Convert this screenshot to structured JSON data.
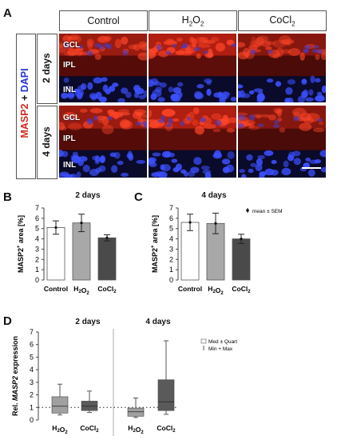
{
  "panelA": {
    "letter": "A",
    "columns": [
      "Control",
      "H2O2",
      "CoCl2"
    ],
    "stain_red": "MASP2",
    "stain_plus": " + ",
    "stain_blue": "DAPI",
    "rows": [
      "2 days",
      "4 days"
    ],
    "layers": [
      "GCL",
      "IPL",
      "INL"
    ]
  },
  "panelB": {
    "letter": "B",
    "title": "2 days"
  },
  "panelC": {
    "letter": "C",
    "title": "4 days",
    "legend": "mean ± SEM"
  },
  "panelD": {
    "letter": "D",
    "title_left": "2 days",
    "title_right": "4 days",
    "legend_box": "Med ± Quart",
    "legend_whisker": "Min + Max"
  },
  "colors": {
    "red": "#d42a1c",
    "blue": "#2535d8",
    "bar_control": "#ffffff",
    "bar_h2o2": "#a8a8a8",
    "bar_cocl2": "#4a4a4a",
    "box_light": "#a0a0a0",
    "box_dark": "#5a5a5a"
  },
  "chart_data": [
    {
      "type": "bar",
      "title": "2 days",
      "categories": [
        "Control",
        "H2O2",
        "CoCl2"
      ],
      "values": [
        5.1,
        5.55,
        4.1
      ],
      "errors": [
        0.65,
        0.85,
        0.3
      ],
      "ylabel": "MASP2+ area [%]",
      "ylim": [
        0,
        7
      ],
      "yticks": [
        0,
        1,
        2,
        3,
        4,
        5,
        6,
        7
      ]
    },
    {
      "type": "bar",
      "title": "4 days",
      "categories": [
        "Control",
        "H2O2",
        "CoCl2"
      ],
      "values": [
        5.6,
        5.5,
        4.0
      ],
      "errors": [
        0.8,
        1.0,
        0.45
      ],
      "ylabel": "MASP2+ area [%]",
      "ylim": [
        0,
        7
      ],
      "yticks": [
        0,
        1,
        2,
        3,
        4,
        5,
        6,
        7
      ]
    },
    {
      "type": "box",
      "ylabel": "Rel. MASP2 expression",
      "ylim": [
        0,
        7
      ],
      "yticks": [
        0,
        1,
        2,
        3,
        4,
        5,
        6,
        7
      ],
      "reference_line": 1,
      "groups": [
        {
          "category": "H2O2",
          "day": "2 days",
          "min": 0.4,
          "q1": 0.55,
          "median": 1.1,
          "q3": 1.85,
          "max": 2.85
        },
        {
          "category": "CoCl2",
          "day": "2 days",
          "min": 0.6,
          "q1": 0.75,
          "median": 1.1,
          "q3": 1.5,
          "max": 2.3
        },
        {
          "category": "H2O2",
          "day": "4 days",
          "min": 0.2,
          "q1": 0.3,
          "median": 0.65,
          "q3": 0.95,
          "max": 1.75
        },
        {
          "category": "CoCl2",
          "day": "4 days",
          "min": 0.45,
          "q1": 0.75,
          "median": 1.45,
          "q3": 3.2,
          "max": 6.3
        }
      ]
    }
  ]
}
